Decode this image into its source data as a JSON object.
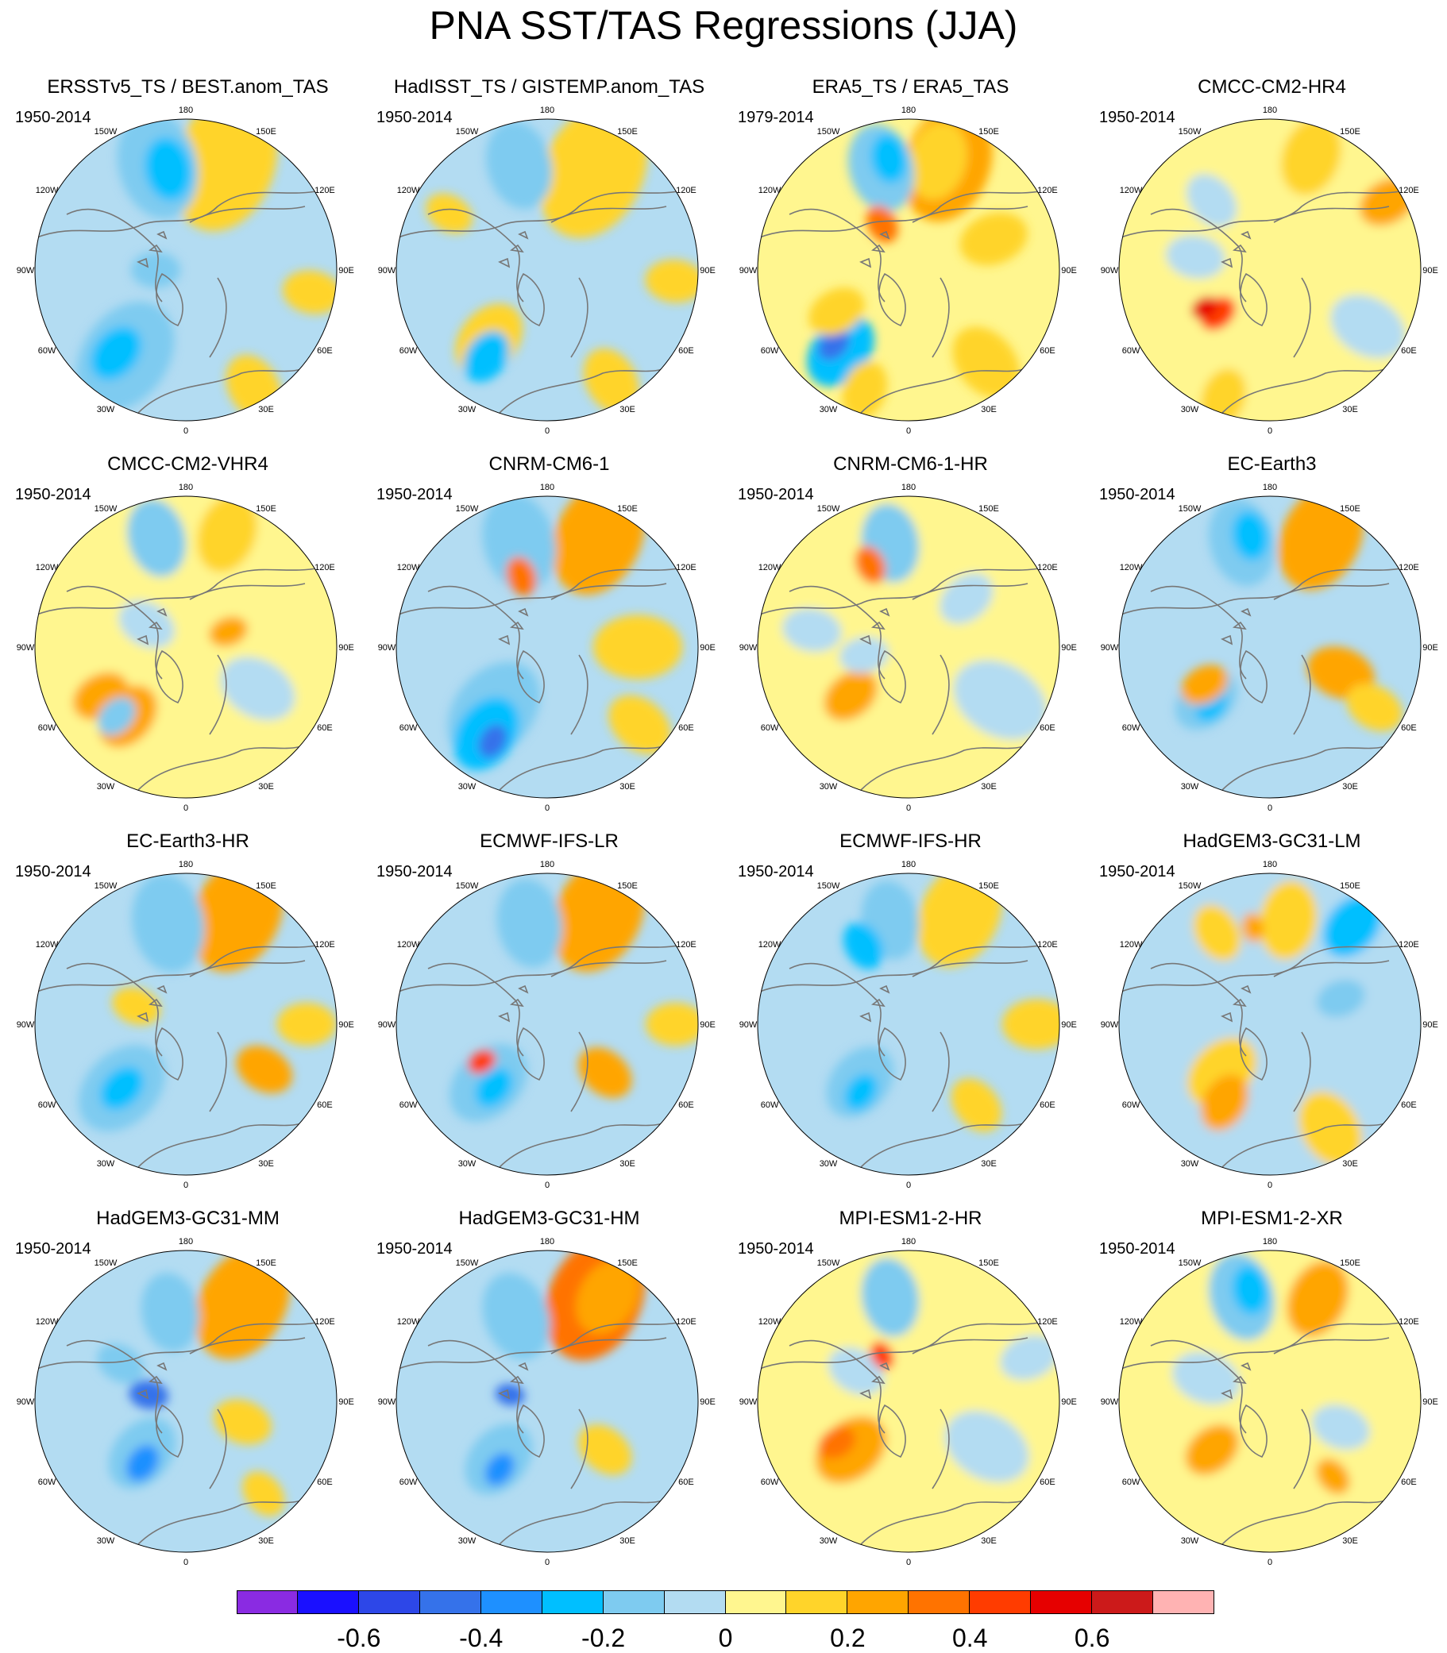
{
  "title": "PNA SST/TAS Regressions (JJA)",
  "lon_labels": [
    "180",
    "150E",
    "120E",
    "90E",
    "60E",
    "30E",
    "0",
    "30W",
    "60W",
    "90W",
    "120W",
    "150W"
  ],
  "panels": [
    {
      "title": "ERSSTv5_TS / BEST.anom_TAS",
      "period": "1950-2014"
    },
    {
      "title": "HadISST_TS / GISTEMP.anom_TAS",
      "period": "1950-2014"
    },
    {
      "title": "ERA5_TS / ERA5_TAS",
      "period": "1979-2014"
    },
    {
      "title": "CMCC-CM2-HR4",
      "period": "1950-2014"
    },
    {
      "title": "CMCC-CM2-VHR4",
      "period": "1950-2014"
    },
    {
      "title": "CNRM-CM6-1",
      "period": "1950-2014"
    },
    {
      "title": "CNRM-CM6-1-HR",
      "period": "1950-2014"
    },
    {
      "title": "EC-Earth3",
      "period": "1950-2014"
    },
    {
      "title": "EC-Earth3-HR",
      "period": "1950-2014"
    },
    {
      "title": "ECMWF-IFS-LR",
      "period": "1950-2014"
    },
    {
      "title": "ECMWF-IFS-HR",
      "period": "1950-2014"
    },
    {
      "title": "HadGEM3-GC31-LM",
      "period": "1950-2014"
    },
    {
      "title": "HadGEM3-GC31-MM",
      "period": "1950-2014"
    },
    {
      "title": "HadGEM3-GC31-HM",
      "period": "1950-2014"
    },
    {
      "title": "MPI-ESM1-2-HR",
      "period": "1950-2014"
    },
    {
      "title": "MPI-ESM1-2-XR",
      "period": "1950-2014"
    }
  ],
  "colorbar": {
    "colors": [
      "#8a2be2",
      "#1a10ff",
      "#2d47e8",
      "#3572ea",
      "#1e90ff",
      "#00bfff",
      "#7ecbf0",
      "#b3dcf2",
      "#fff68f",
      "#ffd42a",
      "#ffa500",
      "#ff7300",
      "#ff3c00",
      "#e60000",
      "#cc1a1a",
      "#ffb3b3"
    ],
    "labels": [
      "-0.6",
      "-0.4",
      "-0.2",
      "0",
      "0.2",
      "0.4",
      "0.6"
    ],
    "label_boundaries": [
      2,
      4,
      6,
      8,
      10,
      12,
      14
    ]
  }
}
